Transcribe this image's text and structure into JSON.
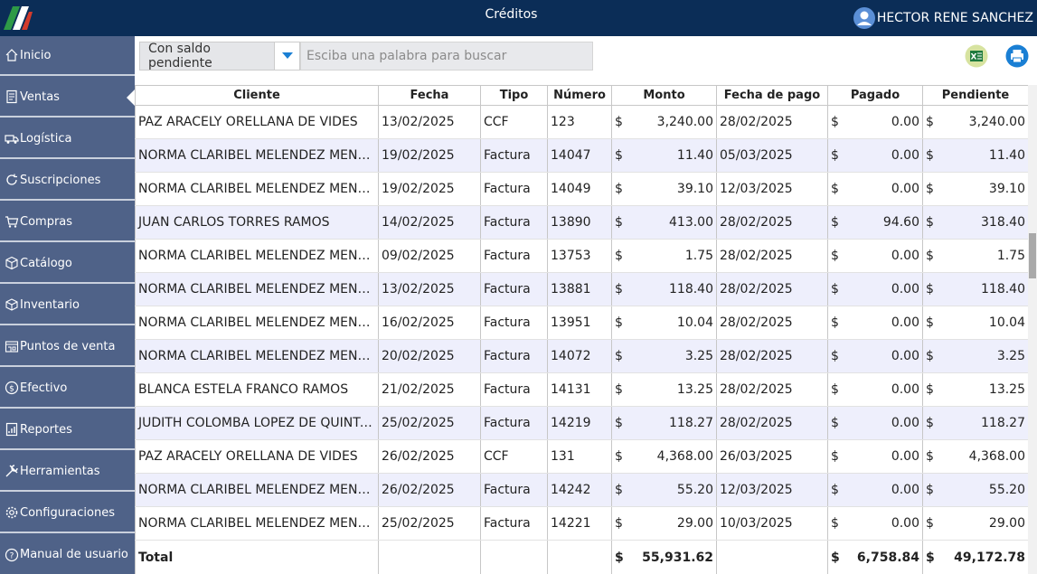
{
  "app": {
    "title": "Créditos",
    "user_name": "HECTOR RENE SANCHEZ"
  },
  "sidebar": {
    "items": [
      {
        "label": "Inicio",
        "icon": "home-icon"
      },
      {
        "label": "Ventas",
        "icon": "receipt-icon",
        "active": true
      },
      {
        "label": "Logística",
        "icon": "truck-icon"
      },
      {
        "label": "Suscripciones",
        "icon": "refresh-icon"
      },
      {
        "label": "Compras",
        "icon": "cart-icon"
      },
      {
        "label": "Catálogo",
        "icon": "box-icon"
      },
      {
        "label": "Inventario",
        "icon": "boxes-icon"
      },
      {
        "label": "Puntos de venta",
        "icon": "store-icon"
      },
      {
        "label": "Efectivo",
        "icon": "dollar-icon"
      },
      {
        "label": "Reportes",
        "icon": "report-icon"
      },
      {
        "label": "Herramientas",
        "icon": "tools-icon"
      },
      {
        "label": "Configuraciones",
        "icon": "gear-icon"
      },
      {
        "label": "Manual de usuario",
        "icon": "help-icon"
      }
    ]
  },
  "toolbar": {
    "filter_value": "Con saldo pendiente",
    "search_placeholder": "Esciba una palabra para buscar"
  },
  "table": {
    "columns": [
      "Cliente",
      "Fecha",
      "Tipo",
      "Número",
      "Monto",
      "Fecha de pago",
      "Pagado",
      "Pendiente"
    ],
    "currency": "$",
    "rows": [
      [
        "PAZ ARACELY ORELLANA DE VIDES",
        "13/02/2025",
        "CCF",
        "123",
        "3,240.00",
        "28/02/2025",
        "0.00",
        "3,240.00"
      ],
      [
        "NORMA CLARIBEL MELENDEZ MENDEZ",
        "19/02/2025",
        "Factura",
        "14047",
        "11.40",
        "05/03/2025",
        "0.00",
        "11.40"
      ],
      [
        "NORMA CLARIBEL MELENDEZ MENDEZ",
        "19/02/2025",
        "Factura",
        "14049",
        "39.10",
        "12/03/2025",
        "0.00",
        "39.10"
      ],
      [
        "JUAN CARLOS TORRES RAMOS",
        "14/02/2025",
        "Factura",
        "13890",
        "413.00",
        "28/02/2025",
        "94.60",
        "318.40"
      ],
      [
        "NORMA CLARIBEL MELENDEZ MENDEZ",
        "09/02/2025",
        "Factura",
        "13753",
        "1.75",
        "28/02/2025",
        "0.00",
        "1.75"
      ],
      [
        "NORMA CLARIBEL MELENDEZ MENDEZ",
        "13/02/2025",
        "Factura",
        "13881",
        "118.40",
        "28/02/2025",
        "0.00",
        "118.40"
      ],
      [
        "NORMA CLARIBEL MELENDEZ MENDEZ",
        "16/02/2025",
        "Factura",
        "13951",
        "10.04",
        "28/02/2025",
        "0.00",
        "10.04"
      ],
      [
        "NORMA CLARIBEL MELENDEZ MENDEZ",
        "20/02/2025",
        "Factura",
        "14072",
        "3.25",
        "28/02/2025",
        "0.00",
        "3.25"
      ],
      [
        "BLANCA ESTELA FRANCO RAMOS",
        "21/02/2025",
        "Factura",
        "14131",
        "13.25",
        "28/02/2025",
        "0.00",
        "13.25"
      ],
      [
        "JUDITH COLOMBA LOPEZ DE QUINTA…",
        "25/02/2025",
        "Factura",
        "14219",
        "118.27",
        "28/02/2025",
        "0.00",
        "118.27"
      ],
      [
        "PAZ ARACELY ORELLANA DE VIDES",
        "26/02/2025",
        "CCF",
        "131",
        "4,368.00",
        "26/03/2025",
        "0.00",
        "4,368.00"
      ],
      [
        "NORMA CLARIBEL MELENDEZ MENDEZ",
        "26/02/2025",
        "Factura",
        "14242",
        "55.20",
        "12/03/2025",
        "0.00",
        "55.20"
      ],
      [
        "NORMA CLARIBEL MELENDEZ MENDEZ",
        "25/02/2025",
        "Factura",
        "14221",
        "29.00",
        "10/03/2025",
        "0.00",
        "29.00"
      ]
    ],
    "totals": {
      "label": "Total",
      "monto": "55,931.62",
      "pagado": "6,758.84",
      "pendiente": "49,172.78"
    }
  },
  "colors": {
    "topbar": "#0b2d57",
    "sidebar": "#4f6288",
    "accent": "#1a7fd4",
    "row_alt": "#eeeffc"
  }
}
